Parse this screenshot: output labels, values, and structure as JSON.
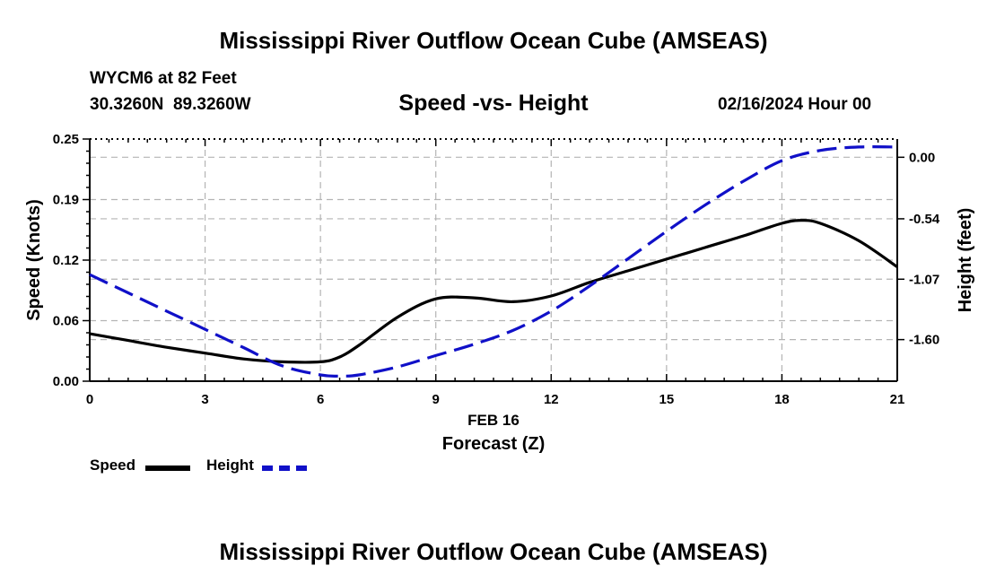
{
  "header": {
    "title": "Mississippi River Outflow Ocean Cube (AMSEAS)",
    "station": "WYCM6 at 82 Feet",
    "coords": "30.3260N  89.3260W",
    "subtitle": "Speed -vs- Height",
    "datetime": "02/16/2024 Hour 00"
  },
  "footer": {
    "title": "Mississippi River Outflow Ocean Cube (AMSEAS)"
  },
  "legend": {
    "speed_label": "Speed",
    "height_label": "Height"
  },
  "colors": {
    "speed": "#000000",
    "height": "#1010c8",
    "grid": "#b4b4b4"
  },
  "chart_data": {
    "type": "line",
    "title": "Speed -vs- Height",
    "xlabel": "Forecast (Z)",
    "xsublabel": "FEB 16",
    "ylabel": "Speed (Knots)",
    "y2label": "Height (feet)",
    "xlim": [
      0,
      21
    ],
    "ylim": [
      0,
      0.25
    ],
    "y2lim": [
      -1.965,
      0.16
    ],
    "x_ticks": [
      0,
      3,
      6,
      9,
      12,
      15,
      18,
      21
    ],
    "x_tick_labels": [
      "0",
      "3",
      "6",
      "9",
      "12",
      "15",
      "18",
      "21"
    ],
    "y_ticks": [
      0.0,
      0.0625,
      0.125,
      0.1875,
      0.25
    ],
    "y_tick_labels": [
      "0.00",
      "0.06",
      "0.12",
      "0.19",
      "0.25"
    ],
    "y2_ticks": [
      0.0,
      -0.54,
      -1.07,
      -1.6
    ],
    "y2_tick_labels": [
      "0.00",
      "-0.54",
      "-1.07",
      "-1.60"
    ],
    "grid": true,
    "series": [
      {
        "name": "Speed",
        "axis": "left",
        "style": "solid",
        "x": [
          0,
          1,
          2,
          3,
          4,
          5,
          6,
          6.5,
          7,
          8,
          9,
          10,
          11,
          12,
          13,
          14,
          15,
          16,
          17,
          18,
          18.5,
          19,
          20,
          21
        ],
        "values": [
          0.049,
          0.042,
          0.035,
          0.029,
          0.023,
          0.02,
          0.02,
          0.025,
          0.037,
          0.066,
          0.085,
          0.086,
          0.082,
          0.088,
          0.102,
          0.114,
          0.126,
          0.138,
          0.15,
          0.163,
          0.166,
          0.163,
          0.145,
          0.118
        ]
      },
      {
        "name": "Height",
        "axis": "right",
        "style": "dashed",
        "x": [
          0,
          1,
          2,
          3,
          4,
          5,
          6,
          6.5,
          7,
          8,
          9,
          10,
          11,
          12,
          13,
          14,
          15,
          16,
          17,
          18,
          19,
          20,
          21
        ],
        "values": [
          -1.03,
          -1.19,
          -1.35,
          -1.51,
          -1.67,
          -1.83,
          -1.91,
          -1.92,
          -1.91,
          -1.84,
          -1.74,
          -1.64,
          -1.52,
          -1.35,
          -1.13,
          -0.89,
          -0.65,
          -0.42,
          -0.21,
          -0.03,
          0.06,
          0.09,
          0.09
        ]
      }
    ]
  }
}
